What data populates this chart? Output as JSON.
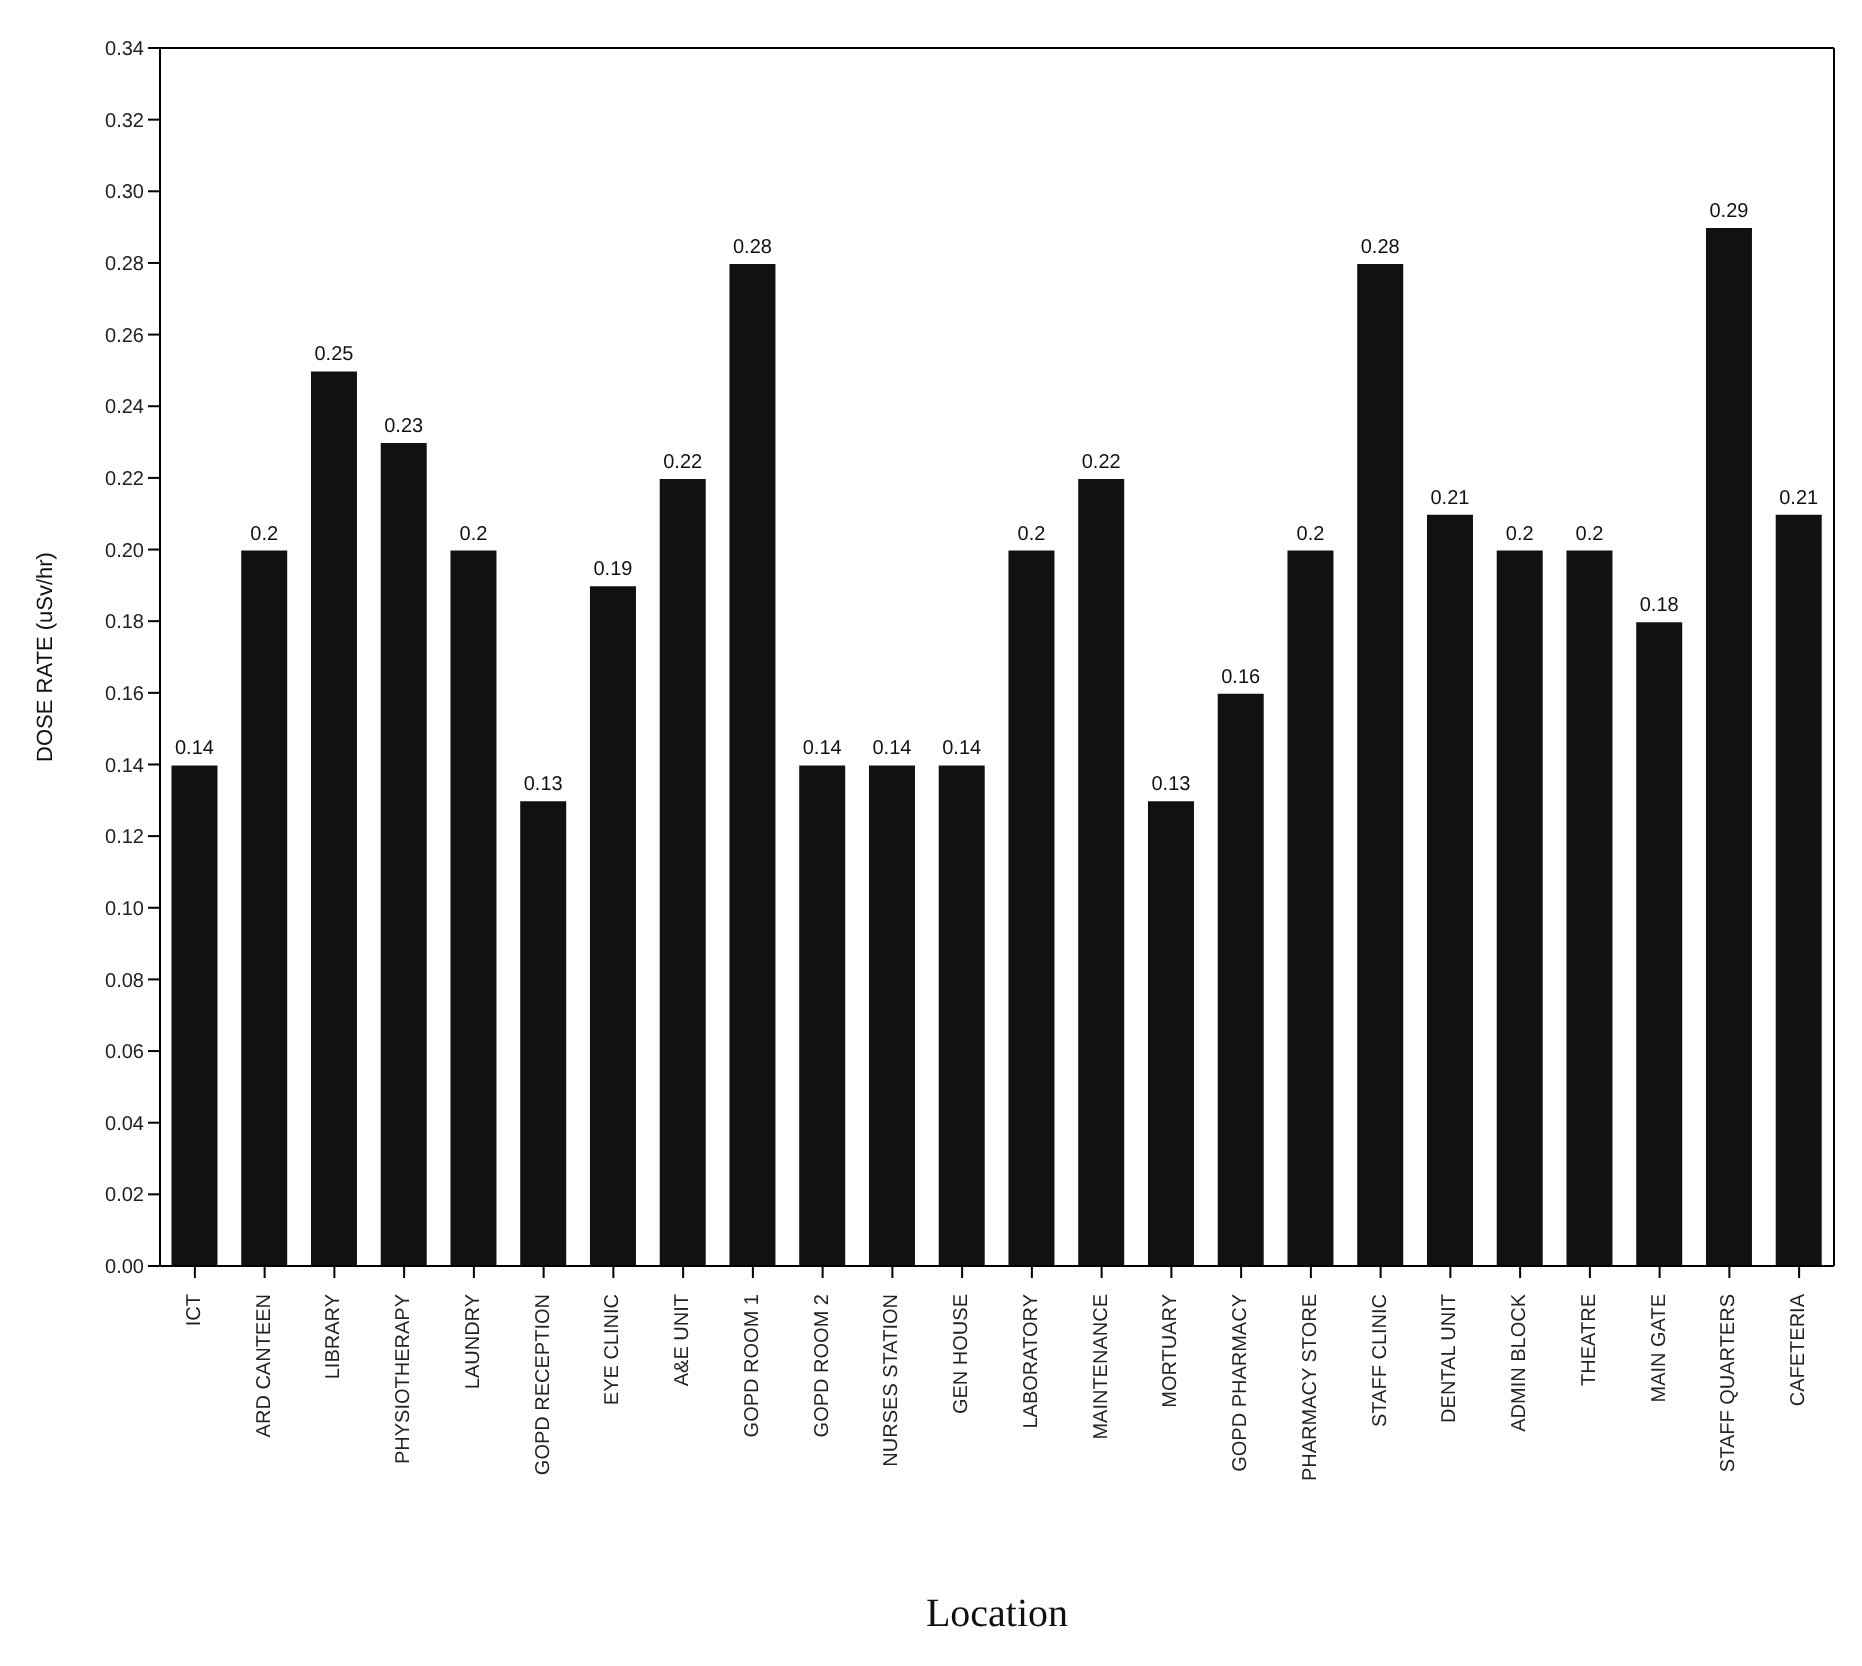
{
  "chart_data": {
    "type": "bar",
    "xlabel": "Location",
    "ylabel": "DOSE RATE (uSv/hr)",
    "categories": [
      "ICT",
      "ARD CANTEEN",
      "LIBRARY",
      "PHYSIOTHERAPY",
      "LAUNDRY",
      "GOPD RECEPTION",
      "EYE CLINIC",
      "A&E UNIT",
      "GOPD ROOM 1",
      "GOPD ROOM 2",
      "NURSES STATION",
      "GEN HOUSE",
      "LABORATORY",
      "MAINTENANCE",
      "MORTUARY",
      "GOPD PHARMACY",
      "PHARMACY STORE",
      "STAFF CLINIC",
      "DENTAL UNIT",
      "ADMIN BLOCK",
      "THEATRE",
      "MAIN GATE",
      "STAFF QUARTERS",
      "CAFETERIA"
    ],
    "values": [
      0.14,
      0.2,
      0.25,
      0.23,
      0.2,
      0.13,
      0.19,
      0.22,
      0.28,
      0.14,
      0.14,
      0.14,
      0.2,
      0.22,
      0.13,
      0.16,
      0.2,
      0.28,
      0.21,
      0.2,
      0.2,
      0.18,
      0.29,
      0.21
    ],
    "color": "#111111",
    "data_labels": true,
    "grid": false,
    "ylim": [
      0,
      0.34
    ],
    "yticks": [
      {
        "value": 0,
        "label": "0.00"
      },
      {
        "value": 0.02,
        "label": "0.02"
      },
      {
        "value": 0.04,
        "label": "0.04"
      },
      {
        "value": 0.06,
        "label": "0.06"
      },
      {
        "value": 0.08,
        "label": "0.08"
      },
      {
        "value": 0.1,
        "label": "0.10"
      },
      {
        "value": 0.12,
        "label": "0.12"
      },
      {
        "value": 0.14,
        "label": "0.14"
      },
      {
        "value": 0.16,
        "label": "0.16"
      },
      {
        "value": 0.18,
        "label": "0.18"
      },
      {
        "value": 0.2,
        "label": "0.20"
      },
      {
        "value": 0.22,
        "label": "0.22"
      },
      {
        "value": 0.24,
        "label": "0.24"
      },
      {
        "value": 0.26,
        "label": "0.26"
      },
      {
        "value": 0.28,
        "label": "0.28"
      },
      {
        "value": 0.3,
        "label": "0.30"
      },
      {
        "value": 0.32,
        "label": "0.32"
      },
      {
        "value": 0.34,
        "label": "0.34"
      }
    ]
  }
}
